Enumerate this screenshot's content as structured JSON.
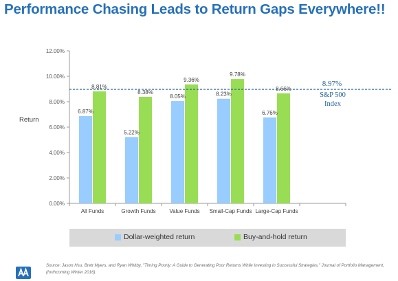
{
  "slide": {
    "title": "Performance Chasing Leads to Return Gaps Everywhere!!",
    "source": "Source: Jason Hsu, Brett Myers, and Ryan Whitby, \"Timing Poorly: A Guide to Generating Poor Returns While Investing in Successful Strategies,\" Journal of Portfolio Management, (forthcoming Winter 2016)."
  },
  "colors": {
    "title": "#2670b8",
    "dollar_weighted": "#99ccff",
    "buy_and_hold": "#99dd55",
    "reference_line": "#1f5e9a"
  },
  "chart_data": {
    "type": "bar",
    "categories": [
      "All Funds",
      "Growth Funds",
      "Value Funds",
      "Small-Cap Funds",
      "Large-Cap Funds"
    ],
    "series": [
      {
        "name": "Dollar-weighted return",
        "values": [
          6.87,
          5.22,
          8.05,
          8.23,
          6.76
        ],
        "labels": [
          "6.87%",
          "5.22%",
          "8.05%",
          "8.23%",
          "6.76%"
        ]
      },
      {
        "name": "Buy-and-hold return",
        "values": [
          8.81,
          8.38,
          9.36,
          9.78,
          8.66
        ],
        "labels": [
          "8.81%",
          "8.38%",
          "9.36%",
          "9.78%",
          "8.66%"
        ]
      }
    ],
    "ylabel": "Return",
    "ylim": [
      0,
      12
    ],
    "yticks": [
      0,
      2,
      4,
      6,
      8,
      10,
      12
    ],
    "ytick_labels": [
      "0.00%",
      "2.00%",
      "4.00%",
      "6.00%",
      "8.00%",
      "10.00%",
      "12.00%"
    ],
    "reference_line": {
      "value": 8.97,
      "value_label": "8.97%",
      "label_line1": "S&P 500",
      "label_line2": "Index"
    },
    "legend_position": "bottom",
    "grid": false
  }
}
